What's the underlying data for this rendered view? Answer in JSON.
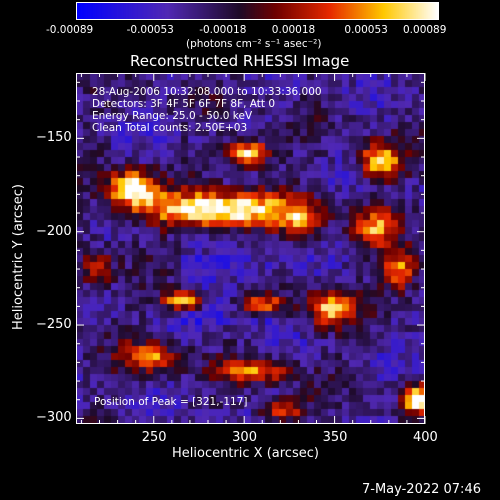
{
  "colorbar": {
    "ticks": [
      "-0.00089",
      "-0.00053",
      "-0.00018",
      "0.00018",
      "0.00053",
      "0.00089"
    ],
    "unit_label": "(photons cm⁻² s⁻¹ asec⁻²)"
  },
  "chart_data": {
    "type": "heatmap",
    "title": "Reconstructed RHESSI Image",
    "xlabel": "Heliocentric X (arcsec)",
    "ylabel": "Heliocentric Y (arcsec)",
    "xlim": [
      207,
      400
    ],
    "ylim": [
      -303,
      -115
    ],
    "x_ticks": [
      250,
      300,
      350,
      400
    ],
    "y_ticks": [
      -150,
      -200,
      -250,
      -300
    ],
    "color_range": [
      -0.00089,
      0.00089
    ],
    "colormap": "blue-purple-red-yellow-white",
    "peak": [
      321,
      -117
    ],
    "annotations": [
      "28-Aug-2006 10:32:08.000 to 10:33:36.000",
      "Detectors: 3F 4F 5F 6F 7F 8F, Att 0",
      "Energy Range: 25.0 - 50.0 keV",
      "Clean    Total counts: 2.50E+03"
    ],
    "peak_label": "Position of Peak = [321,-117]"
  },
  "footer": {
    "date": "7-May-2022 07:46"
  },
  "colors": {
    "background": "#000000",
    "text": "#ffffff"
  }
}
